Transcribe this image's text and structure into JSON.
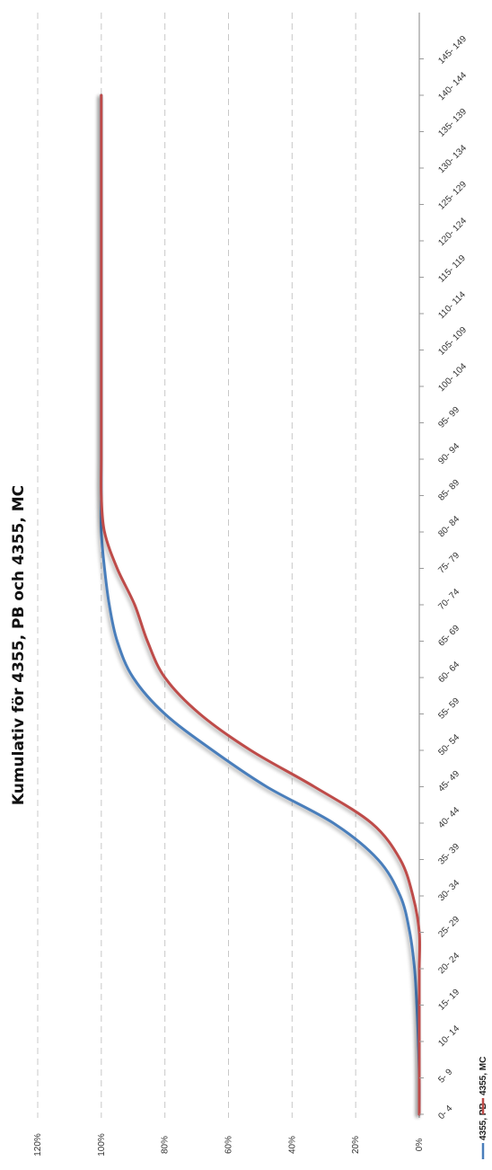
{
  "chart_data": {
    "type": "line",
    "title": "Kumulativ för 4355, PB och 4355, MC",
    "xlabel": "",
    "ylabel": "",
    "categories": [
      "0- 4",
      "5- 9",
      "10- 14",
      "15- 19",
      "20- 24",
      "25- 29",
      "30- 34",
      "35- 39",
      "40- 44",
      "45- 49",
      "50- 54",
      "55- 59",
      "60- 64",
      "65- 69",
      "70- 74",
      "75- 79",
      "80- 84",
      "85- 89",
      "90- 94",
      "95- 99",
      "100- 104",
      "105- 109",
      "110- 114",
      "115- 119",
      "120- 124",
      "125- 129",
      "130- 134",
      "135- 139",
      "140- 144",
      "145- 149"
    ],
    "y_ticks": [
      "0%",
      "20%",
      "40%",
      "60%",
      "80%",
      "100%",
      "120%"
    ],
    "ylim": [
      0,
      120
    ],
    "grid": true,
    "legend_position": "bottom-left",
    "orientation": "rotated 90° counter-clockwise",
    "series": [
      {
        "name": "4355, PB",
        "color": "#4a7ebb",
        "values": [
          0,
          0,
          0.3,
          0.8,
          1.5,
          3,
          6,
          13,
          27,
          48,
          65,
          80,
          90,
          95,
          97.5,
          99,
          100,
          100,
          100,
          100,
          100,
          100,
          100,
          100,
          100,
          100,
          100,
          100,
          100,
          null
        ]
      },
      {
        "name": "4355, MC",
        "color": "#be4b48",
        "values": [
          0,
          0,
          0,
          0,
          0,
          0,
          2,
          6,
          15,
          33,
          53,
          69,
          80,
          85.5,
          89.5,
          95,
          99,
          100,
          100,
          100,
          100,
          100,
          100,
          100,
          100,
          100,
          100,
          100,
          100,
          null
        ]
      }
    ]
  }
}
